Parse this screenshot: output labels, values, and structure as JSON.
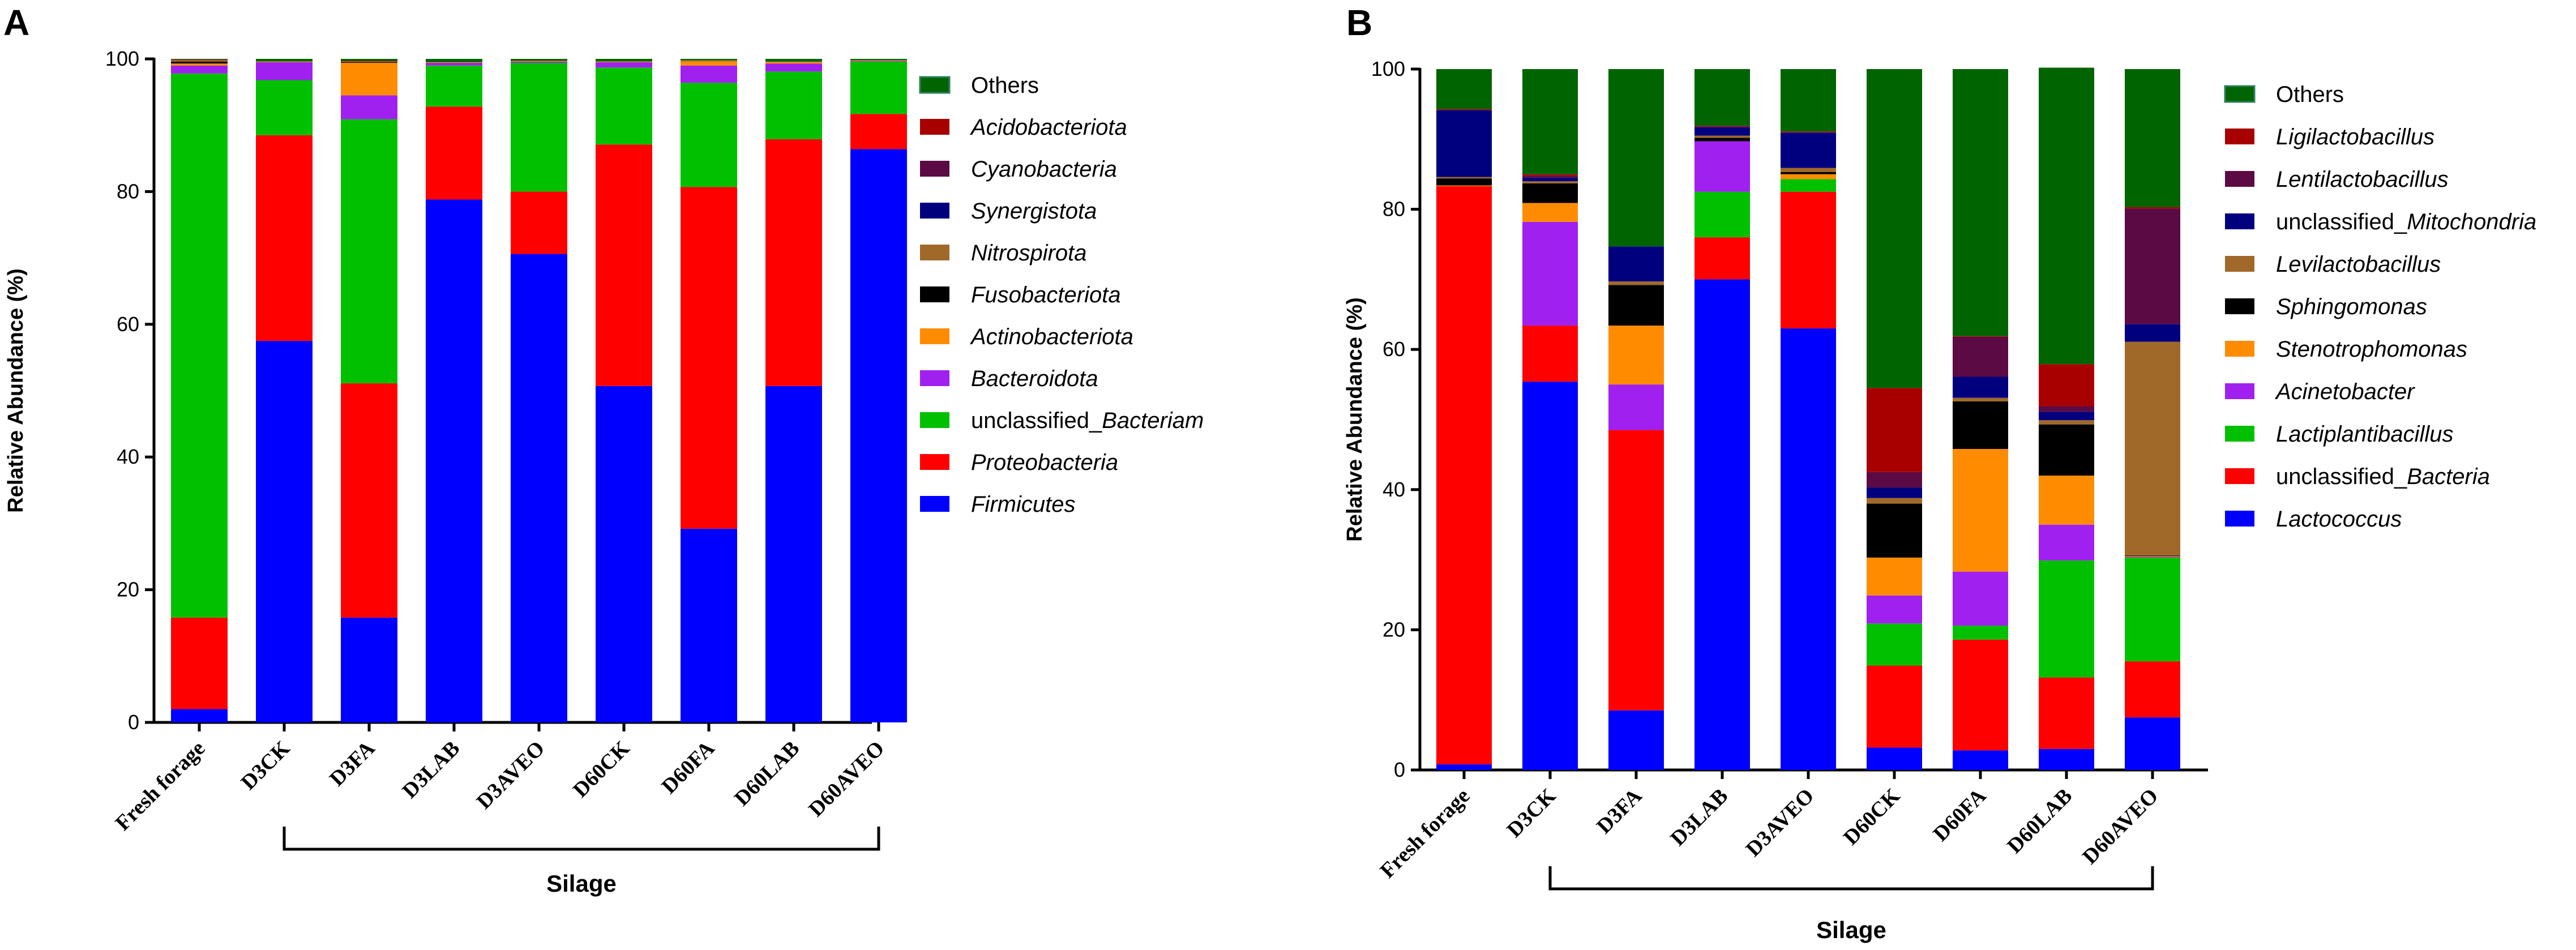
{
  "chart_data": [
    {
      "panel": "A",
      "type": "bar",
      "stacked": true,
      "ylabel": "Relative Abundance (%)",
      "xlabel": "Silage",
      "ylim": [
        0,
        100
      ],
      "yticks": [
        0,
        20,
        40,
        60,
        80,
        100
      ],
      "categories": [
        "Fresh forage",
        "D3CK",
        "D3FA",
        "D3LAB",
        "D3AVEO",
        "D60CK",
        "D60FA",
        "D60LAB",
        "D60AVEO"
      ],
      "series": [
        {
          "name": "Firmicutes",
          "italic": true,
          "color": "#0000ff",
          "values": [
            2.0,
            57.5,
            15.8,
            78.8,
            70.6,
            50.7,
            29.2,
            50.7,
            86.4
          ]
        },
        {
          "name": "Proteobacteria",
          "italic": true,
          "color": "#ff0000",
          "values": [
            13.8,
            31.0,
            35.3,
            14.0,
            9.4,
            36.4,
            51.5,
            37.2,
            5.3
          ]
        },
        {
          "name": "unclassified_Bacteriam",
          "prefix": "unclassified_",
          "italicPart": "Bacteriam",
          "color": "#00c000",
          "values": [
            82.0,
            8.3,
            39.8,
            6.2,
            19.4,
            11.6,
            15.7,
            10.2,
            7.9
          ]
        },
        {
          "name": "Bacteroidota",
          "italic": true,
          "color": "#a020f0",
          "values": [
            1.2,
            2.7,
            3.6,
            0.4,
            0.2,
            0.8,
            2.6,
            1.2,
            0.1
          ]
        },
        {
          "name": "Actinobacteriota",
          "italic": true,
          "color": "#ff8c00",
          "values": [
            0.3,
            0.1,
            4.9,
            0.1,
            0.1,
            0.1,
            0.6,
            0.2,
            0.1
          ]
        },
        {
          "name": "Fusobacteriota",
          "italic": true,
          "color": "#000000",
          "values": [
            0.3,
            0.0,
            0.1,
            0.0,
            0.0,
            0.0,
            0.0,
            0.0,
            0.0
          ]
        },
        {
          "name": "Nitrospirota",
          "italic": true,
          "color": "#a0692a",
          "values": [
            0.2,
            0.0,
            0.1,
            0.0,
            0.0,
            0.0,
            0.2,
            0.1,
            0.0
          ]
        },
        {
          "name": "Synergistota",
          "italic": true,
          "color": "#00007f",
          "values": [
            0.0,
            0.0,
            0.0,
            0.0,
            0.0,
            0.0,
            0.0,
            0.0,
            0.0
          ]
        },
        {
          "name": "Cyanobacteria",
          "italic": true,
          "color": "#5c0a44",
          "values": [
            0.0,
            0.0,
            0.0,
            0.0,
            0.0,
            0.0,
            0.0,
            0.0,
            0.0
          ]
        },
        {
          "name": "Acidobacteriota",
          "italic": true,
          "color": "#a80000",
          "values": [
            0.1,
            0.0,
            0.1,
            0.0,
            0.0,
            0.0,
            0.0,
            0.0,
            0.0
          ]
        },
        {
          "name": "Others",
          "italic": false,
          "color": "#006400",
          "values": [
            0.1,
            0.4,
            0.3,
            0.5,
            0.3,
            0.4,
            0.2,
            0.4,
            0.2
          ]
        }
      ]
    },
    {
      "panel": "B",
      "type": "bar",
      "stacked": true,
      "ylabel": "Relative Abundance (%)",
      "xlabel": "Silage",
      "ylim": [
        0,
        100
      ],
      "yticks": [
        0,
        20,
        40,
        60,
        80,
        100
      ],
      "categories": [
        "Fresh forage",
        "D3CK",
        "D3FA",
        "D3LAB",
        "D3AVEO",
        "D60CK",
        "D60FA",
        "D60LAB",
        "D60AVEO"
      ],
      "series": [
        {
          "name": "Lactococcus",
          "italic": true,
          "color": "#0000ff",
          "values": [
            0.8,
            55.4,
            8.5,
            70.0,
            63.0,
            3.2,
            2.8,
            3.0,
            7.5
          ]
        },
        {
          "name": "unclassified_Bacteria",
          "prefix": "unclassified_",
          "italicPart": "Bacteria",
          "color": "#ff0000",
          "values": [
            82.5,
            8.0,
            40.0,
            6.0,
            19.5,
            11.7,
            15.8,
            10.2,
            8.0
          ]
        },
        {
          "name": "Lactiplantibacillus",
          "italic": true,
          "color": "#00c000",
          "values": [
            0.0,
            0.0,
            0.0,
            6.5,
            1.8,
            6.0,
            2.0,
            16.7,
            14.8
          ]
        },
        {
          "name": "Acinetobacter",
          "italic": true,
          "color": "#a020f0",
          "values": [
            0.0,
            14.8,
            6.5,
            7.2,
            0.0,
            4.0,
            7.7,
            5.1,
            0.1
          ]
        },
        {
          "name": "Stenotrophomonas",
          "italic": true,
          "color": "#ff8c00",
          "values": [
            0.1,
            2.7,
            8.4,
            0.0,
            0.7,
            5.4,
            17.5,
            7.0,
            0.1
          ]
        },
        {
          "name": "Sphingomonas",
          "italic": true,
          "color": "#000000",
          "values": [
            1.0,
            2.8,
            5.8,
            0.5,
            0.3,
            7.7,
            6.8,
            7.3,
            0.1
          ]
        },
        {
          "name": "Levilactobacillus",
          "italic": true,
          "color": "#a0692a",
          "values": [
            0.2,
            0.3,
            0.5,
            0.3,
            0.6,
            0.8,
            0.5,
            0.6,
            30.5
          ]
        },
        {
          "name": "unclassified_Mitochondria",
          "prefix": "unclassified_",
          "italicPart": "Mitochondria",
          "color": "#00007f",
          "values": [
            9.5,
            0.5,
            5.0,
            1.2,
            5.0,
            1.5,
            3.0,
            1.2,
            2.5
          ]
        },
        {
          "name": "Lentilactobacillus",
          "italic": true,
          "color": "#5c0a44",
          "values": [
            0.1,
            0.3,
            0.0,
            0.1,
            0.1,
            2.2,
            5.7,
            0.8,
            16.5
          ]
        },
        {
          "name": "Ligilactobacillus",
          "italic": true,
          "color": "#a80000",
          "values": [
            0.1,
            0.2,
            0.0,
            0.1,
            0.1,
            12.0,
            0.1,
            6.0,
            0.2
          ]
        },
        {
          "name": "Others",
          "italic": false,
          "color": "#006400",
          "values": [
            5.7,
            15.0,
            25.3,
            8.1,
            8.9,
            45.5,
            38.1,
            42.3,
            19.7
          ]
        }
      ]
    }
  ]
}
